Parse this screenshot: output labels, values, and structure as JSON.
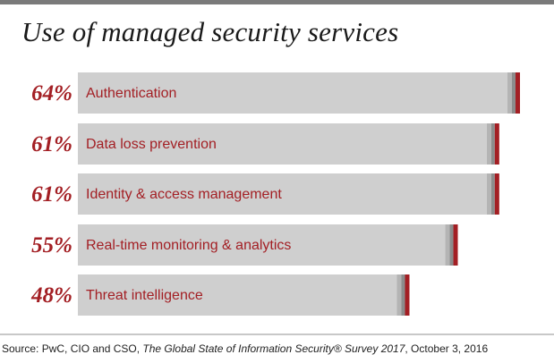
{
  "chart_data": {
    "type": "bar",
    "orientation": "horizontal",
    "title": "Use of managed security services",
    "categories": [
      "Authentication",
      "Data loss prevention",
      "Identity & access management",
      "Real-time monitoring & analytics",
      "Threat intelligence"
    ],
    "values": [
      64,
      61,
      61,
      55,
      48
    ],
    "value_labels": [
      "64%",
      "61%",
      "61%",
      "55%",
      "48%"
    ],
    "unit": "%",
    "xlim": [
      0,
      100
    ],
    "grid": false,
    "legend": "none"
  },
  "colors": {
    "bar_fill": "#cfcfcf",
    "bar_end_dark": "#8c8c8c",
    "bar_end_light": "#b4b4b4",
    "bar_end_accent": "#a31f24",
    "text_accent": "#a31f24"
  },
  "source": {
    "prefix": "Source: PwC, CIO and CSO, ",
    "publication": "The Global State of Information Security® Survey 2017",
    "suffix": ", October 3, 2016"
  }
}
